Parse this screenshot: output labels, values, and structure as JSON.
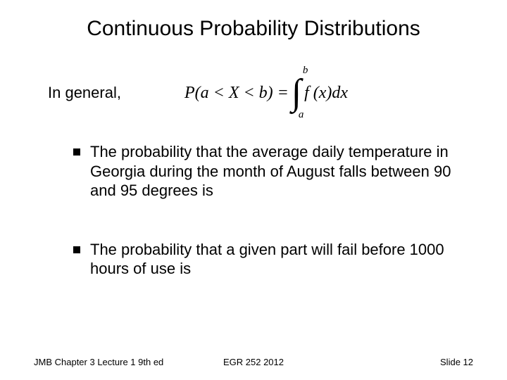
{
  "title": "Continuous Probability Distributions",
  "general_label": "In general,",
  "formula": {
    "lhs": "P(a < X < b) = ",
    "upper": "b",
    "lower": "a",
    "integrand": "f (x)dx"
  },
  "bullets": [
    "The probability that the average daily temperature in Georgia during the month of August falls between 90 and 95 degrees is",
    "The probability that a given part will fail before 1000 hours of use is"
  ],
  "footer": {
    "left": "JMB Chapter 3 Lecture 1 9th ed",
    "center": "EGR 252 2012",
    "right": "Slide  12"
  },
  "style": {
    "background_color": "#ffffff",
    "text_color": "#000000",
    "title_fontsize": 30,
    "body_fontsize": 22,
    "footer_fontsize": 13,
    "bullet_marker": "square",
    "bullet_marker_color": "#000000",
    "font_family": "Arial"
  }
}
